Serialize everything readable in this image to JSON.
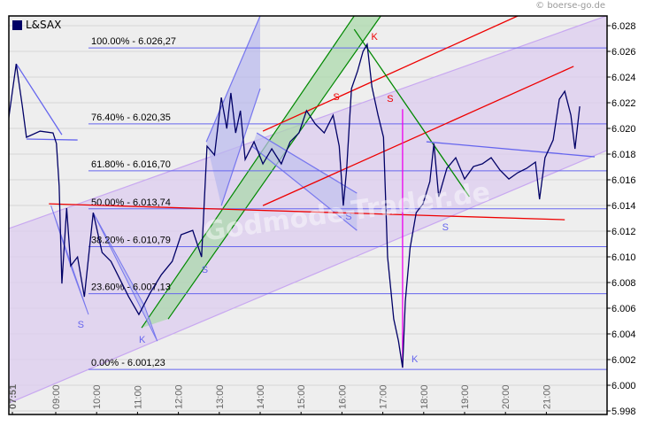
{
  "copyright": "© boerse-go.de",
  "chart_data": {
    "type": "line",
    "legend": {
      "label": "L&SAX",
      "color": "#000066",
      "placement": "top-left"
    },
    "ylim": [
      5.998,
      6.029
    ],
    "yticks": [
      "5.998",
      "6.000",
      "6.002",
      "6.004",
      "6.006",
      "6.008",
      "6.010",
      "6.012",
      "6.014",
      "6.016",
      "6.018",
      "6.020",
      "6.022",
      "6.024",
      "6.026",
      "6.028"
    ],
    "xticks": [
      "07:51",
      "09:00",
      "10:00",
      "11:00",
      "12:00",
      "13:00",
      "14:00",
      "15:00",
      "16:00",
      "17:00",
      "18:00",
      "19:00",
      "20:00",
      "21:00"
    ],
    "grid": true,
    "series": [
      {
        "color": "#000066",
        "points": [
          [
            "07:51",
            6.02082
          ],
          [
            "08:02",
            6.02503
          ],
          [
            "08:11",
            6.02172
          ],
          [
            "08:17",
            6.01931
          ],
          [
            "08:37",
            6.01979
          ],
          [
            "08:56",
            6.01965
          ],
          [
            "09:01",
            6.01882
          ],
          [
            "09:05",
            6.01551
          ],
          [
            "09:09",
            6.00792
          ],
          [
            "09:16",
            6.01379
          ],
          [
            "09:22",
            6.0093
          ],
          [
            "09:32",
            6.00999
          ],
          [
            "09:42",
            6.00689
          ],
          [
            "09:55",
            6.01344
          ],
          [
            "10:08",
            6.01034
          ],
          [
            "10:21",
            6.00965
          ],
          [
            "10:34",
            6.00827
          ],
          [
            "10:47",
            6.00689
          ],
          [
            "11:02",
            6.00551
          ],
          [
            "11:19",
            6.00723
          ],
          [
            "11:35",
            6.00861
          ],
          [
            "11:51",
            6.00965
          ],
          [
            "12:04",
            6.01172
          ],
          [
            "12:21",
            6.01206
          ],
          [
            "12:34",
            6.00999
          ],
          [
            "12:42",
            6.01862
          ],
          [
            "12:53",
            6.01793
          ],
          [
            "13:03",
            6.02241
          ],
          [
            "13:11",
            6.01999
          ],
          [
            "13:17",
            6.02276
          ],
          [
            "13:24",
            6.01965
          ],
          [
            "13:31",
            6.02138
          ],
          [
            "13:38",
            6.01758
          ],
          [
            "13:51",
            6.01896
          ],
          [
            "14:04",
            6.01724
          ],
          [
            "14:17",
            6.01841
          ],
          [
            "14:31",
            6.01724
          ],
          [
            "14:44",
            6.01896
          ],
          [
            "14:57",
            6.01965
          ],
          [
            "15:08",
            6.02138
          ],
          [
            "15:21",
            6.02034
          ],
          [
            "15:34",
            6.01965
          ],
          [
            "15:47",
            6.02103
          ],
          [
            "15:56",
            6.01862
          ],
          [
            "16:02",
            6.01399
          ],
          [
            "16:07",
            6.01689
          ],
          [
            "16:14",
            6.0231
          ],
          [
            "16:23",
            6.02448
          ],
          [
            "16:31",
            6.026
          ],
          [
            "16:37",
            6.02655
          ],
          [
            "16:44",
            6.02324
          ],
          [
            "16:53",
            6.02103
          ],
          [
            "17:01",
            6.01931
          ],
          [
            "17:07",
            6.00999
          ],
          [
            "17:16",
            6.00516
          ],
          [
            "17:23",
            6.00344
          ],
          [
            "17:29",
            6.00137
          ],
          [
            "17:33",
            6.00654
          ],
          [
            "17:40",
            6.01068
          ],
          [
            "17:49",
            6.01344
          ],
          [
            "17:59",
            6.01413
          ],
          [
            "18:09",
            6.01586
          ],
          [
            "18:15",
            6.01882
          ],
          [
            "18:22",
            6.01468
          ],
          [
            "18:34",
            6.01689
          ],
          [
            "18:47",
            6.01772
          ],
          [
            "19:00",
            6.01606
          ],
          [
            "19:13",
            6.01703
          ],
          [
            "19:26",
            6.01724
          ],
          [
            "19:39",
            6.01772
          ],
          [
            "19:52",
            6.01675
          ],
          [
            "20:05",
            6.01606
          ],
          [
            "20:18",
            6.01655
          ],
          [
            "20:31",
            6.01689
          ],
          [
            "20:44",
            6.01738
          ],
          [
            "20:50",
            6.01448
          ],
          [
            "20:58",
            6.01772
          ],
          [
            "21:10",
            6.0191
          ],
          [
            "21:19",
            6.02227
          ],
          [
            "21:27",
            6.02289
          ],
          [
            "21:36",
            6.02103
          ],
          [
            "21:42",
            6.01841
          ],
          [
            "21:49",
            6.02172
          ]
        ]
      }
    ],
    "fibonacci": {
      "start": "09:48",
      "color": "#6666ee",
      "levels": [
        {
          "label": "100.00% - 6.026,27",
          "value": 6.02627
        },
        {
          "label": "76.40% - 6.020,35",
          "value": 6.02035
        },
        {
          "label": "61.80% - 6.016,70",
          "value": 6.0167
        },
        {
          "label": "50.00% - 6.013,74",
          "value": 6.01374
        },
        {
          "label": "38.20% - 6.010,79",
          "value": 6.01079
        },
        {
          "label": "23.60% - 6.007,13",
          "value": 6.00713
        },
        {
          "label": "0.00% - 6.001,23",
          "value": 6.00123
        }
      ]
    },
    "channels": [
      {
        "color": "#c8a8f0",
        "fill": "#dccbf0",
        "lines": [
          [
            [
              "07:51",
              6.0122
            ],
            [
              "22:28",
              6.02876
            ]
          ],
          [
            [
              "07:51",
              5.99861
            ],
            [
              "22:28",
              6.01827
            ]
          ]
        ]
      },
      {
        "color": "#008800",
        "fill": "#a8d8a8",
        "lines": [
          [
            [
              "11:06",
              6.00447
            ],
            [
              "16:18",
              6.02876
            ]
          ],
          [
            [
              "11:45",
              6.00516
            ],
            [
              "16:57",
              6.02876
            ]
          ]
        ]
      },
      {
        "color": "#7777ee",
        "fill": "#b8b8ee",
        "lines": [
          [
            [
              "12:41",
              6.01896
            ],
            [
              "14:00",
              6.02876
            ]
          ],
          [
            [
              "13:03",
              6.01399
            ],
            [
              "14:00",
              6.0231
            ]
          ]
        ]
      },
      {
        "color": "#7777ee",
        "fill": "#c0c0ee",
        "lines": [
          [
            [
              "13:55",
              6.01965
            ],
            [
              "16:22",
              6.01496
            ]
          ],
          [
            [
              "13:48",
              6.01862
            ],
            [
              "16:22",
              6.01206
            ]
          ]
        ]
      }
    ],
    "triangles": [
      {
        "color": "#7777ee",
        "fill": "#b8b8ee",
        "points": [
          [
            "08:53",
            6.01399
          ],
          [
            "09:48",
            6.00551
          ],
          [
            "09:22",
            6.0093
          ]
        ]
      },
      {
        "color": "#7777ee",
        "fill": "#b8b8ee",
        "points": [
          [
            "09:55",
            6.01344
          ],
          [
            "11:29",
            6.00344
          ],
          [
            "11:10",
            6.0062
          ]
        ]
      }
    ],
    "lines": [
      {
        "color": "#6666ee",
        "from": [
          "08:02",
          6.02503
        ],
        "to": [
          "09:09",
          6.01951
        ]
      },
      {
        "color": "#6666ee",
        "from": [
          "08:17",
          6.01917
        ],
        "to": [
          "09:32",
          6.0191
        ]
      },
      {
        "color": "#ee0000",
        "from": [
          "14:04",
          6.01979
        ],
        "to": [
          "20:18",
          6.02876
        ]
      },
      {
        "color": "#ee0000",
        "from": [
          "14:04",
          6.01399
        ],
        "to": [
          "21:40",
          6.02483
        ]
      },
      {
        "color": "#ee0000",
        "from": [
          "08:50",
          6.01413
        ],
        "to": [
          "21:27",
          6.01289
        ]
      },
      {
        "color": "#008800",
        "from": [
          "16:18",
          6.02772
        ],
        "to": [
          "19:07",
          6.01468
        ]
      },
      {
        "color": "#ee00ee",
        "from": [
          "17:29",
          6.0215
        ],
        "to": [
          "17:29",
          6.00137
        ]
      },
      {
        "color": "#6666ee",
        "from": [
          "18:04",
          6.01896
        ],
        "to": [
          "22:11",
          6.01779
        ]
      }
    ],
    "annotations": [
      {
        "text": "S",
        "color": "#6666ee",
        "at": [
          "09:32",
          6.00447
        ]
      },
      {
        "text": "K",
        "color": "#6666ee",
        "at": [
          "11:02",
          6.0033
        ]
      },
      {
        "text": "S",
        "color": "#6666ee",
        "at": [
          "12:34",
          6.00875
        ]
      },
      {
        "text": "S",
        "color": "#6666ee",
        "at": [
          "16:05",
          6.01289
        ]
      },
      {
        "text": "K",
        "color": "#ee0000",
        "at": [
          "16:43",
          6.02689
        ]
      },
      {
        "text": "S",
        "color": "#ee0000",
        "at": [
          "15:47",
          6.0222
        ]
      },
      {
        "text": "S",
        "color": "#ee0000",
        "at": [
          "17:06",
          6.02207
        ]
      },
      {
        "text": "K",
        "color": "#6666ee",
        "at": [
          "17:42",
          6.00178
        ]
      },
      {
        "text": "S",
        "color": "#6666ee",
        "at": [
          "18:27",
          6.01206
        ]
      }
    ]
  }
}
